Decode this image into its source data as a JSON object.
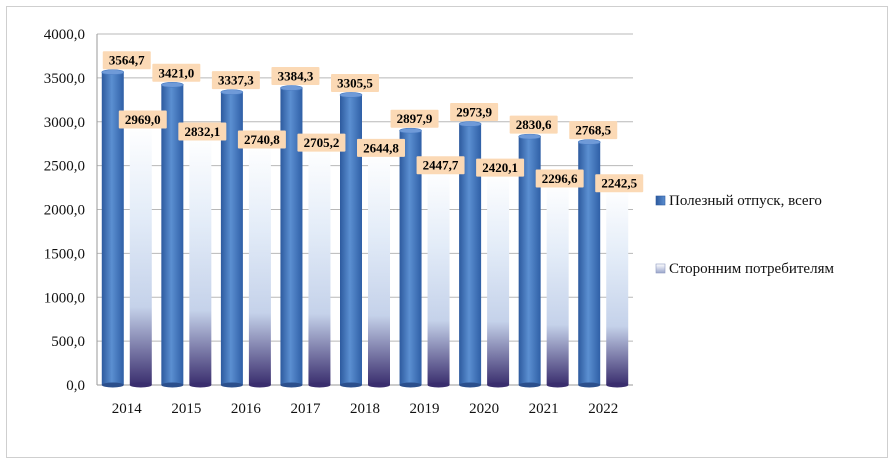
{
  "chart_data": {
    "type": "bar",
    "title": "",
    "xlabel": "",
    "ylabel": "",
    "categories": [
      "2014",
      "2015",
      "2016",
      "2017",
      "2018",
      "2019",
      "2020",
      "2021",
      "2022"
    ],
    "series": [
      {
        "name": "Полезный отпуск, всего",
        "values": [
          3564.7,
          3421.0,
          3337.3,
          3384.3,
          3305.5,
          2897.9,
          2973.9,
          2830.6,
          2768.5
        ],
        "labels": [
          "3564,7",
          "3421,0",
          "3337,3",
          "3384,3",
          "3305,5",
          "2897,9",
          "2973,9",
          "2830,6",
          "2768,5"
        ],
        "color": "#3f6fb6"
      },
      {
        "name": "Сторонним потребителям",
        "values": [
          2969.0,
          2832.1,
          2740.8,
          2705.2,
          2644.8,
          2447.7,
          2420.1,
          2296.6,
          2242.5
        ],
        "labels": [
          "2969,0",
          "2832,1",
          "2740,8",
          "2705,2",
          "2644,8",
          "2447,7",
          "2420,1",
          "2296,6",
          "2242,5"
        ],
        "color": "#d9e4f2"
      }
    ],
    "ylim": [
      0,
      4000
    ],
    "yticks": [
      0,
      500,
      1000,
      1500,
      2000,
      2500,
      3000,
      3500,
      4000
    ],
    "ytick_labels": [
      "0,0",
      "500,0",
      "1000,0",
      "1500,0",
      "2000,0",
      "2500,0",
      "3000,0",
      "3500,0",
      "4000,0"
    ],
    "grid": true,
    "legend_position": "right",
    "label_background": "#fbd9b5"
  }
}
